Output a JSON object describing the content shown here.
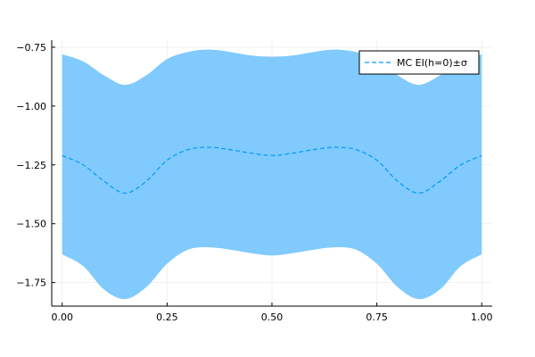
{
  "chart_data": {
    "type": "area",
    "title": "",
    "xlabel": "",
    "ylabel": "",
    "xlim": [
      -0.025,
      1.025
    ],
    "ylim": [
      -1.85,
      -0.72
    ],
    "x_ticks": [
      0.0,
      0.25,
      0.5,
      0.75,
      1.0
    ],
    "x_tick_labels": [
      "0.00",
      "0.25",
      "0.50",
      "0.75",
      "1.00"
    ],
    "y_ticks": [
      -0.75,
      -1.0,
      -1.25,
      -1.5,
      -1.75
    ],
    "y_tick_labels": [
      "−0.75",
      "−1.00",
      "−1.25",
      "−1.50",
      "−1.75"
    ],
    "grid": true,
    "legend_position": "top-right",
    "series": [
      {
        "name": "MC EI(h=0)±σ",
        "style": "dashed",
        "color": "#009AFA",
        "band_color": "#80CAFD",
        "x": [
          0.0,
          0.05,
          0.1,
          0.15,
          0.2,
          0.25,
          0.3,
          0.35,
          0.4,
          0.45,
          0.5,
          0.55,
          0.6,
          0.65,
          0.7,
          0.75,
          0.8,
          0.85,
          0.9,
          0.95,
          1.0
        ],
        "y": [
          -1.21,
          -1.25,
          -1.32,
          -1.37,
          -1.32,
          -1.23,
          -1.185,
          -1.175,
          -1.185,
          -1.2,
          -1.21,
          -1.2,
          -1.185,
          -1.175,
          -1.185,
          -1.23,
          -1.32,
          -1.37,
          -1.32,
          -1.25,
          -1.21
        ],
        "lower": [
          -1.63,
          -1.68,
          -1.78,
          -1.82,
          -1.77,
          -1.67,
          -1.61,
          -1.6,
          -1.61,
          -1.625,
          -1.635,
          -1.625,
          -1.61,
          -1.6,
          -1.61,
          -1.67,
          -1.77,
          -1.82,
          -1.78,
          -1.68,
          -1.63
        ],
        "upper": [
          -0.78,
          -0.81,
          -0.87,
          -0.91,
          -0.87,
          -0.8,
          -0.77,
          -0.76,
          -0.77,
          -0.785,
          -0.79,
          -0.785,
          -0.77,
          -0.76,
          -0.77,
          -0.8,
          -0.87,
          -0.91,
          -0.87,
          -0.81,
          -0.78
        ]
      }
    ]
  }
}
